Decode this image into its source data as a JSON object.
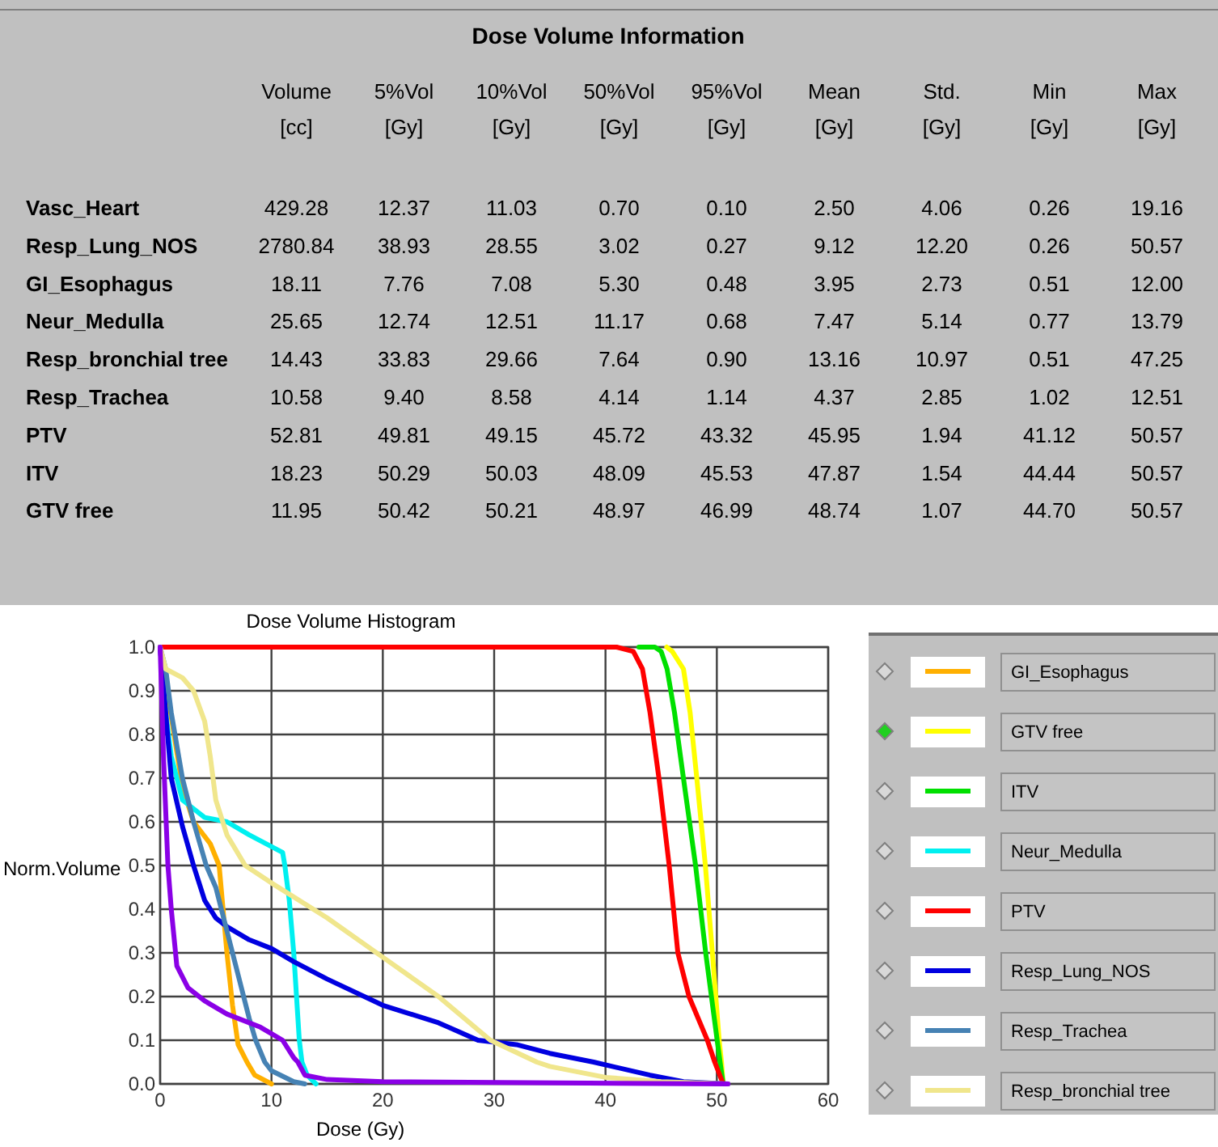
{
  "chart_data": [
    {
      "type": "other",
      "title": "Dose Volume Information",
      "categories": [
        "Volume [cc]",
        "5%Vol [Gy]",
        "10%Vol [Gy]",
        "50%Vol [Gy]",
        "95%Vol [Gy]",
        "Mean [Gy]",
        "Std. [Gy]",
        "Min [Gy]",
        "Max [Gy]"
      ],
      "y_categories": [
        "Vasc_Heart",
        "Resp_Lung_NOS",
        "GI_Esophagus",
        "Neur_Medulla",
        "Resp_bronchial tree",
        "Resp_Trachea",
        "PTV",
        "ITV",
        "GTV free"
      ],
      "cell_labels": [
        [
          "429.28",
          "12.37",
          "11.03",
          "0.70",
          "0.10",
          "2.50",
          "4.06",
          "0.26",
          "19.16"
        ],
        [
          "2780.84",
          "38.93",
          "28.55",
          "3.02",
          "0.27",
          "9.12",
          "12.20",
          "0.26",
          "50.57"
        ],
        [
          "18.11",
          "7.76",
          "7.08",
          "5.30",
          "0.48",
          "3.95",
          "2.73",
          "0.51",
          "12.00"
        ],
        [
          "25.65",
          "12.74",
          "12.51",
          "11.17",
          "0.68",
          "7.47",
          "5.14",
          "0.77",
          "13.79"
        ],
        [
          "14.43",
          "33.83",
          "29.66",
          "7.64",
          "0.90",
          "13.16",
          "10.97",
          "0.51",
          "47.25"
        ],
        [
          "10.58",
          "9.40",
          "8.58",
          "4.14",
          "1.14",
          "4.37",
          "2.85",
          "1.02",
          "12.51"
        ],
        [
          "52.81",
          "49.81",
          "49.15",
          "45.72",
          "43.32",
          "45.95",
          "1.94",
          "41.12",
          "50.57"
        ],
        [
          "18.23",
          "50.29",
          "50.03",
          "48.09",
          "45.53",
          "47.87",
          "1.54",
          "44.44",
          "50.57"
        ],
        [
          "11.95",
          "50.42",
          "50.21",
          "48.97",
          "46.99",
          "48.74",
          "1.07",
          "44.70",
          "50.57"
        ]
      ]
    },
    {
      "type": "line",
      "title": "Dose Volume Histogram",
      "xlabel": "Dose (Gy)",
      "ylabel": "Norm.Volume",
      "xlim": [
        0,
        60
      ],
      "xticks": [
        0,
        10,
        20,
        30,
        40,
        50,
        60
      ],
      "ylim": [
        0,
        1
      ],
      "yticks": [
        {
          "value": 0,
          "label": "0.0"
        },
        {
          "value": 0.1,
          "label": "0.1"
        },
        {
          "value": 0.2,
          "label": "0.2"
        },
        {
          "value": 0.3,
          "label": "0.3"
        },
        {
          "value": 0.4,
          "label": "0.4"
        },
        {
          "value": 0.5,
          "label": "0.5"
        },
        {
          "value": 0.6,
          "label": "0.6"
        },
        {
          "value": 0.7,
          "label": "0.7"
        },
        {
          "value": 0.8,
          "label": "0.8"
        },
        {
          "value": 0.9,
          "label": "0.9"
        },
        {
          "value": 1,
          "label": "1.0"
        }
      ],
      "grid": true,
      "legend": "right",
      "marker": "none",
      "line_style": "solid",
      "series": [
        {
          "name": "GI_Esophagus",
          "color": "#ffb000",
          "x": [
            0,
            2,
            3,
            4.5,
            5.3,
            6,
            6.5,
            7,
            7.8,
            8.5,
            10
          ],
          "values": [
            1,
            0.68,
            0.6,
            0.55,
            0.5,
            0.3,
            0.18,
            0.09,
            0.05,
            0.02,
            0
          ]
        },
        {
          "name": "GTV free",
          "color": "#ffff00",
          "x": [
            45.5,
            46,
            47,
            47.6,
            48.2,
            48.97,
            49.6,
            50.21,
            50.42,
            50.57
          ],
          "values": [
            1,
            0.99,
            0.95,
            0.85,
            0.7,
            0.5,
            0.3,
            0.1,
            0.05,
            0
          ]
        },
        {
          "name": "ITV",
          "color": "#00e000",
          "x": [
            43,
            44.44,
            45,
            45.53,
            46.2,
            47,
            48.09,
            49,
            50.03,
            50.29,
            50.57
          ],
          "values": [
            1,
            1,
            0.99,
            0.95,
            0.85,
            0.7,
            0.5,
            0.3,
            0.1,
            0.05,
            0
          ]
        },
        {
          "name": "Neur_Medulla",
          "color": "#00f0f0",
          "x": [
            0,
            0.5,
            1,
            2,
            4,
            6,
            8,
            11,
            11.2,
            11.6,
            12,
            12.5,
            12.74,
            13.2,
            14
          ],
          "values": [
            1,
            0.85,
            0.75,
            0.65,
            0.61,
            0.6,
            0.57,
            0.53,
            0.5,
            0.42,
            0.3,
            0.1,
            0.05,
            0.02,
            0
          ]
        },
        {
          "name": "PTV",
          "color": "#ff0000",
          "x": [
            0,
            41,
            42.5,
            43.32,
            44,
            44.8,
            45.72,
            46.5,
            47.5,
            49.15,
            49.81,
            50.57
          ],
          "values": [
            1,
            1,
            0.99,
            0.95,
            0.85,
            0.7,
            0.5,
            0.3,
            0.2,
            0.1,
            0.05,
            0
          ]
        },
        {
          "name": "Resp_Lung_NOS",
          "color": "#0000e0",
          "x": [
            0,
            0.5,
            1,
            2,
            3,
            4,
            5,
            6,
            8,
            10,
            12,
            15,
            20,
            25,
            28.55,
            32,
            35,
            38.93,
            44,
            47,
            51
          ],
          "values": [
            1,
            0.85,
            0.7,
            0.59,
            0.5,
            0.42,
            0.38,
            0.36,
            0.33,
            0.31,
            0.28,
            0.24,
            0.18,
            0.14,
            0.1,
            0.09,
            0.07,
            0.05,
            0.02,
            0.005,
            0
          ]
        },
        {
          "name": "Resp_Trachea",
          "color": "#4682b4",
          "x": [
            0,
            0.5,
            1,
            2,
            3,
            4.14,
            5,
            6,
            7,
            8,
            8.58,
            9.4,
            10,
            12,
            13
          ],
          "values": [
            1,
            0.95,
            0.85,
            0.7,
            0.6,
            0.5,
            0.45,
            0.35,
            0.25,
            0.15,
            0.1,
            0.05,
            0.03,
            0.005,
            0
          ]
        },
        {
          "name": "Resp_bronchial tree",
          "color": "#f0e68c",
          "x": [
            0,
            0.5,
            2,
            3,
            4,
            4.5,
            5,
            6,
            7.64,
            10,
            15,
            20,
            25,
            29.66,
            33.83,
            35,
            40,
            45,
            51
          ],
          "values": [
            1,
            0.95,
            0.93,
            0.9,
            0.83,
            0.75,
            0.65,
            0.57,
            0.5,
            0.46,
            0.38,
            0.29,
            0.2,
            0.1,
            0.05,
            0.04,
            0.015,
            0.005,
            0
          ]
        },
        {
          "color": "#8a00e6",
          "x": [
            0,
            0.3,
            0.7,
            1,
            1.5,
            2.5,
            4,
            6,
            9,
            11,
            12,
            12.37,
            13,
            15,
            20,
            51
          ],
          "values": [
            1,
            0.75,
            0.5,
            0.4,
            0.27,
            0.22,
            0.19,
            0.16,
            0.13,
            0.1,
            0.06,
            0.05,
            0.02,
            0.01,
            0.005,
            0
          ]
        }
      ]
    }
  ]
}
